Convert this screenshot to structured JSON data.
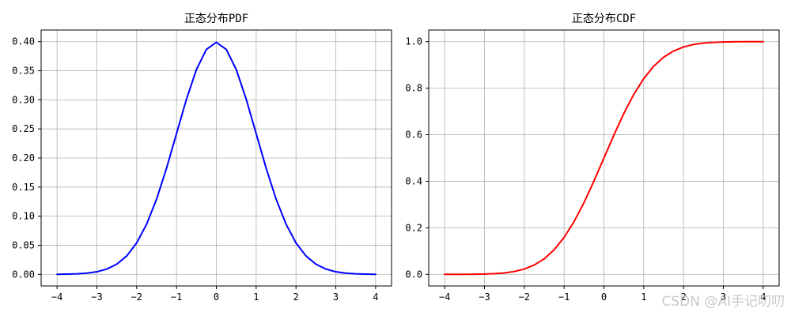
{
  "chart_data": [
    {
      "type": "line",
      "title": "正态分布PDF",
      "xlabel": "",
      "ylabel": "",
      "xlim": [
        -4.4,
        4.4
      ],
      "ylim": [
        -0.02,
        0.42
      ],
      "xticks": [
        "−4",
        "−3",
        "−2",
        "−1",
        "0",
        "1",
        "2",
        "3",
        "4"
      ],
      "yticks": [
        "0.00",
        "0.05",
        "0.10",
        "0.15",
        "0.20",
        "0.25",
        "0.30",
        "0.35",
        "0.40"
      ],
      "grid": true,
      "color": "#0000ff",
      "x": [
        -4,
        -3.75,
        -3.5,
        -3.25,
        -3,
        -2.75,
        -2.5,
        -2.25,
        -2,
        -1.75,
        -1.5,
        -1.25,
        -1,
        -0.75,
        -0.5,
        -0.25,
        0,
        0.25,
        0.5,
        0.75,
        1,
        1.25,
        1.5,
        1.75,
        2,
        2.25,
        2.5,
        2.75,
        3,
        3.25,
        3.5,
        3.75,
        4
      ],
      "y": [
        0.0001,
        0.0004,
        0.0009,
        0.002,
        0.0044,
        0.0091,
        0.0175,
        0.0317,
        0.054,
        0.0863,
        0.1295,
        0.1826,
        0.242,
        0.3011,
        0.3521,
        0.3867,
        0.3989,
        0.3867,
        0.3521,
        0.3011,
        0.242,
        0.1826,
        0.1295,
        0.0863,
        0.054,
        0.0317,
        0.0175,
        0.0091,
        0.0044,
        0.002,
        0.0009,
        0.0004,
        0.0001
      ]
    },
    {
      "type": "line",
      "title": "正态分布CDF",
      "xlabel": "",
      "ylabel": "",
      "xlim": [
        -4.4,
        4.4
      ],
      "ylim": [
        -0.05,
        1.05
      ],
      "xticks": [
        "−4",
        "−3",
        "−2",
        "−1",
        "0",
        "1",
        "2",
        "3",
        "4"
      ],
      "yticks": [
        "0.0",
        "0.2",
        "0.4",
        "0.6",
        "0.8",
        "1.0"
      ],
      "grid": true,
      "color": "#ff0000",
      "x": [
        -4,
        -3.75,
        -3.5,
        -3.25,
        -3,
        -2.75,
        -2.5,
        -2.25,
        -2,
        -1.75,
        -1.5,
        -1.25,
        -1,
        -0.75,
        -0.5,
        -0.25,
        0,
        0.25,
        0.5,
        0.75,
        1,
        1.25,
        1.5,
        1.75,
        2,
        2.25,
        2.5,
        2.75,
        3,
        3.25,
        3.5,
        3.75,
        4
      ],
      "y": [
        0.0,
        0.0001,
        0.0002,
        0.0006,
        0.0013,
        0.003,
        0.0062,
        0.0122,
        0.0228,
        0.0401,
        0.0668,
        0.1056,
        0.1587,
        0.2266,
        0.3085,
        0.4013,
        0.5,
        0.5987,
        0.6915,
        0.7734,
        0.8413,
        0.8944,
        0.9332,
        0.9599,
        0.9772,
        0.9878,
        0.9938,
        0.997,
        0.9987,
        0.9994,
        0.9998,
        0.9999,
        1.0
      ]
    }
  ],
  "watermark": "CSDN @AI手记叨叨"
}
